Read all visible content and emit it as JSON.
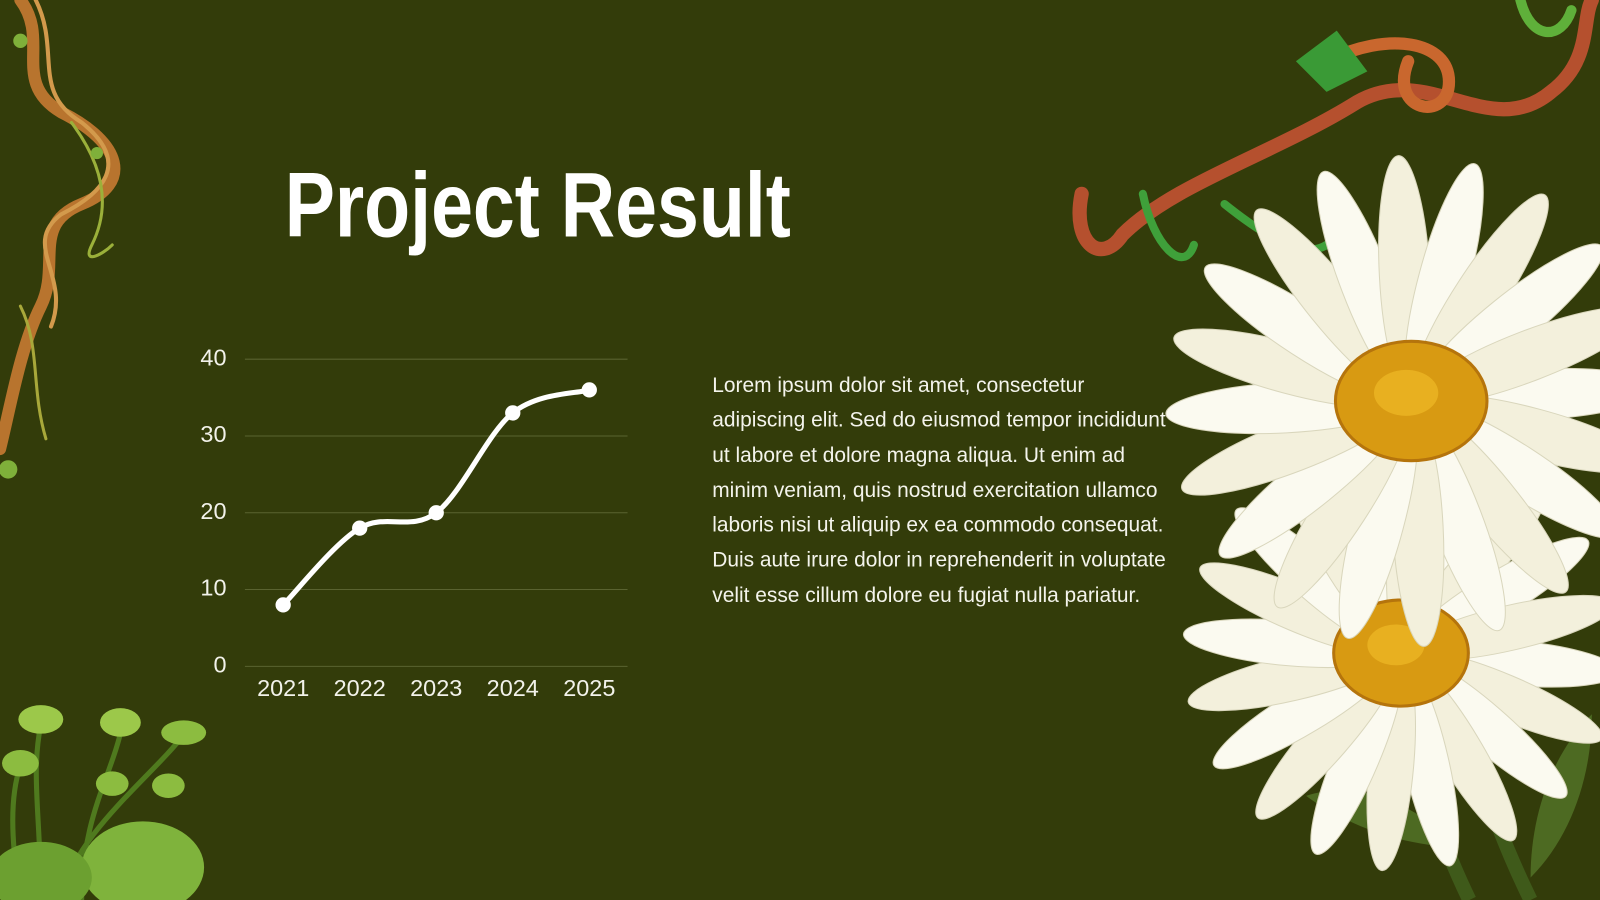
{
  "title": "Project Result",
  "body": "Lorem ipsum dolor sit amet, consectetur adipiscing elit. Sed do eiusmod tempor incididunt ut labore et dolore magna aliqua. Ut enim ad minim veniam, quis nostrud exercitation ullamco laboris nisi ut aliquip ex ea commodo consequat. Duis aute irure dolor in reprehenderit in voluptate velit esse cillum dolore eu fugiat nulla pariatur.",
  "chart_data": {
    "type": "line",
    "categories": [
      "2021",
      "2022",
      "2023",
      "2024",
      "2025"
    ],
    "values": [
      8,
      18,
      20,
      33,
      36
    ],
    "color": "#ffffff",
    "ylim": [
      0,
      40
    ],
    "yticks": [
      0,
      10,
      20,
      30,
      40
    ],
    "grid": true
  }
}
